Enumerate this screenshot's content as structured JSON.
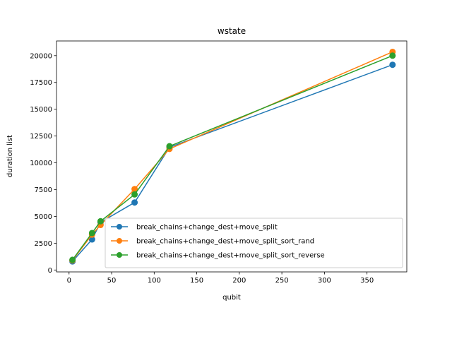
{
  "chart_data": {
    "type": "line",
    "title": "wstate",
    "xlabel": "qubit",
    "ylabel": "duration list",
    "xlim": [
      -14.75,
      396.75
    ],
    "ylim": [
      -178,
      21370
    ],
    "xticks": [
      0,
      50,
      100,
      150,
      200,
      250,
      300,
      350
    ],
    "yticks": [
      0,
      2500,
      5000,
      7500,
      10000,
      12500,
      15000,
      17500,
      20000
    ],
    "grid": false,
    "legend_position": "lower-right",
    "series": [
      {
        "name": "break_chains+change_dest+move_split",
        "color": "#1f77b4",
        "x": [
          4,
          27,
          37,
          77,
          118,
          380
        ],
        "y": [
          800,
          2850,
          4450,
          6300,
          11450,
          19150
        ]
      },
      {
        "name": "break_chains+change_dest+move_split_sort_rand",
        "color": "#ff7f0e",
        "x": [
          4,
          27,
          37,
          77,
          118,
          380
        ],
        "y": [
          900,
          3300,
          4200,
          7550,
          11300,
          20350
        ]
      },
      {
        "name": "break_chains+change_dest+move_split_sort_reverse",
        "color": "#2ca02c",
        "x": [
          4,
          27,
          37,
          77,
          118,
          380
        ],
        "y": [
          950,
          3450,
          4550,
          7050,
          11550,
          20000
        ]
      }
    ]
  }
}
